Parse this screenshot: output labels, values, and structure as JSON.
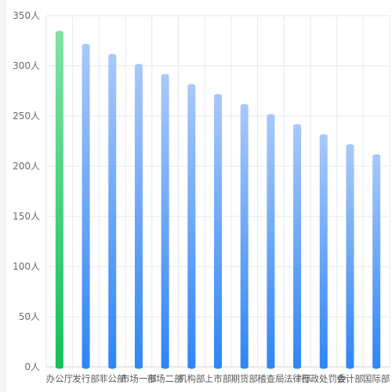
{
  "chart_data": {
    "type": "bar",
    "title": "",
    "xlabel": "",
    "ylabel": "",
    "unit": "人",
    "ylim": [
      0,
      350
    ],
    "yticks": [
      0,
      50,
      100,
      150,
      200,
      250,
      300,
      350
    ],
    "ytick_labels": [
      "0人",
      "50人",
      "100人",
      "150人",
      "200人",
      "250人",
      "300人",
      "350人"
    ],
    "grid": true,
    "categories": [
      "办公厅",
      "发行部",
      "非公部",
      "市场一部",
      "市场二部",
      "机构部",
      "上市部",
      "期货部",
      "稽查局",
      "法律部",
      "行政处罚委",
      "会计部",
      "国际部"
    ],
    "values": [
      333,
      320,
      310,
      300,
      290,
      280,
      270,
      260,
      250,
      240,
      230,
      220,
      210
    ],
    "highlight_index": 0,
    "colors": {
      "highlight_top": "#7ee3a5",
      "highlight_bottom": "#15c05c",
      "bar_top": "#a8c8fb",
      "bar_bottom": "#2f86f6",
      "grid": "#e6e9ef",
      "axis": "#cfd3da"
    }
  }
}
